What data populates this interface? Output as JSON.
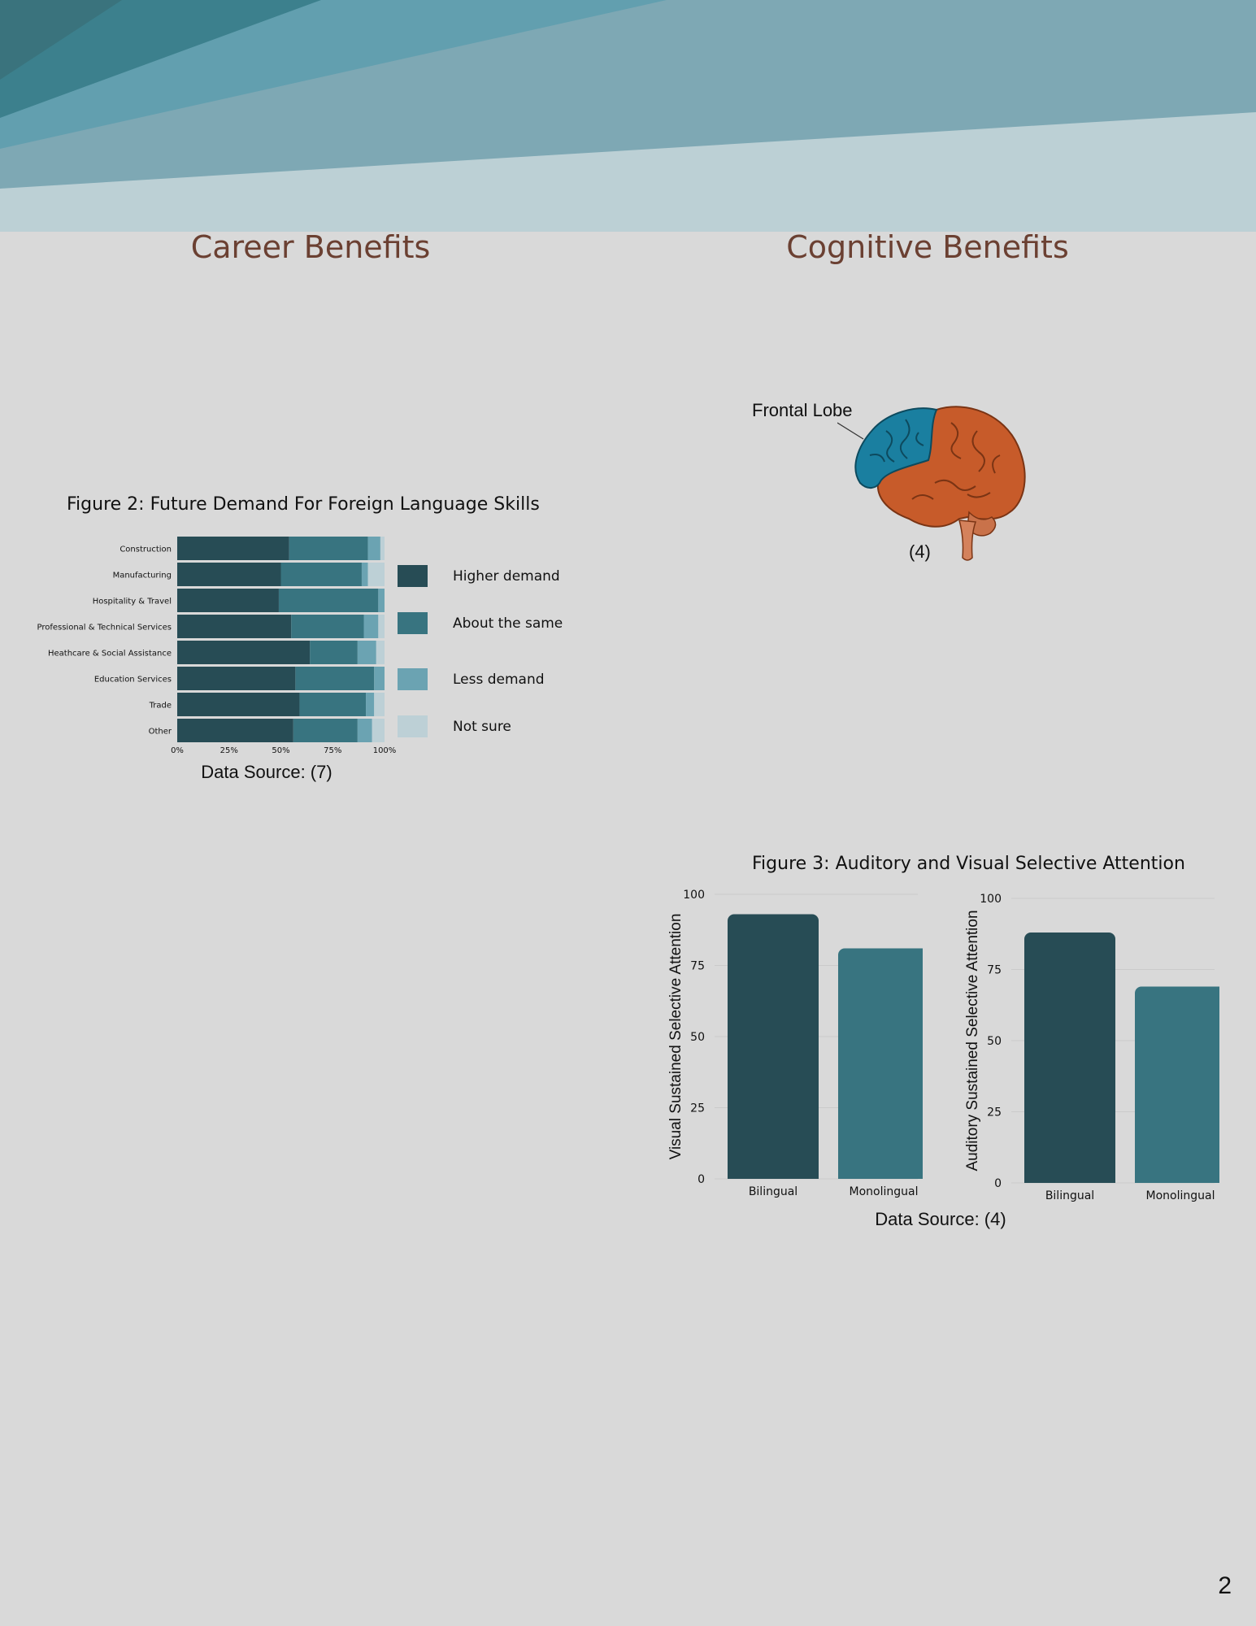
{
  "page_number": "2",
  "sections": {
    "career": {
      "title": "Career Benefits"
    },
    "cognitive": {
      "title": "Cognitive Benefits"
    }
  },
  "brain_illustration": {
    "callout": "Frontal Lobe",
    "citation": "(4)",
    "colors": {
      "frontal_lobe": "#1a7fa0",
      "rest_of_brain": "#c75b2a"
    }
  },
  "figure2": {
    "title": "Figure 2: Future Demand For Foreign Language Skills",
    "source": "Data Source: (7)"
  },
  "figure3": {
    "title": "Figure 3: Auditory and Visual Selective Attention",
    "source": "Data Source: (4)"
  },
  "chart_data": [
    {
      "type": "bar",
      "orientation": "horizontal",
      "stacked": true,
      "categories": [
        "Construction",
        "Manufacturing",
        "Hospitality & Travel",
        "Professional & Technical Services",
        "Heathcare & Social Assistance",
        "Education Services",
        "Trade",
        "Other"
      ],
      "series": [
        {
          "name": "Higher demand",
          "color": "#274c55",
          "values": [
            54,
            50,
            49,
            55,
            64,
            57,
            59,
            56
          ]
        },
        {
          "name": "About the same",
          "color": "#387480",
          "values": [
            38,
            39,
            48,
            35,
            23,
            38,
            32,
            31
          ]
        },
        {
          "name": "Less demand",
          "color": "#6ba3b2",
          "values": [
            6,
            3,
            3,
            7,
            9,
            5,
            4,
            7
          ]
        },
        {
          "name": "Not sure",
          "color": "#bdd0d6",
          "values": [
            2,
            8,
            0,
            3,
            4,
            0,
            5,
            6
          ]
        }
      ],
      "x_ticks": [
        "0%",
        "25%",
        "50%",
        "75%",
        "100%"
      ],
      "xlim": [
        0,
        100
      ],
      "legend_position": "right"
    },
    {
      "type": "bar",
      "categories": [
        "Bilingual",
        "Monolingual"
      ],
      "series": [
        {
          "values": [
            93,
            81
          ]
        }
      ],
      "colors": [
        "#274c55",
        "#387480"
      ],
      "ylabel": "Visual  Sustained Selective Attention",
      "y_ticks": [
        "0",
        "25",
        "50",
        "75",
        "100"
      ],
      "ylim": [
        0,
        100
      ],
      "grid": true
    },
    {
      "type": "bar",
      "categories": [
        "Bilingual",
        "Monolingual"
      ],
      "series": [
        {
          "values": [
            88,
            69
          ]
        }
      ],
      "colors": [
        "#274c55",
        "#387480"
      ],
      "ylabel": "Auditory Sustained Selective Attention",
      "y_ticks": [
        "0",
        "25",
        "50",
        "75",
        "100"
      ],
      "ylim": [
        0,
        100
      ],
      "grid": true
    }
  ]
}
